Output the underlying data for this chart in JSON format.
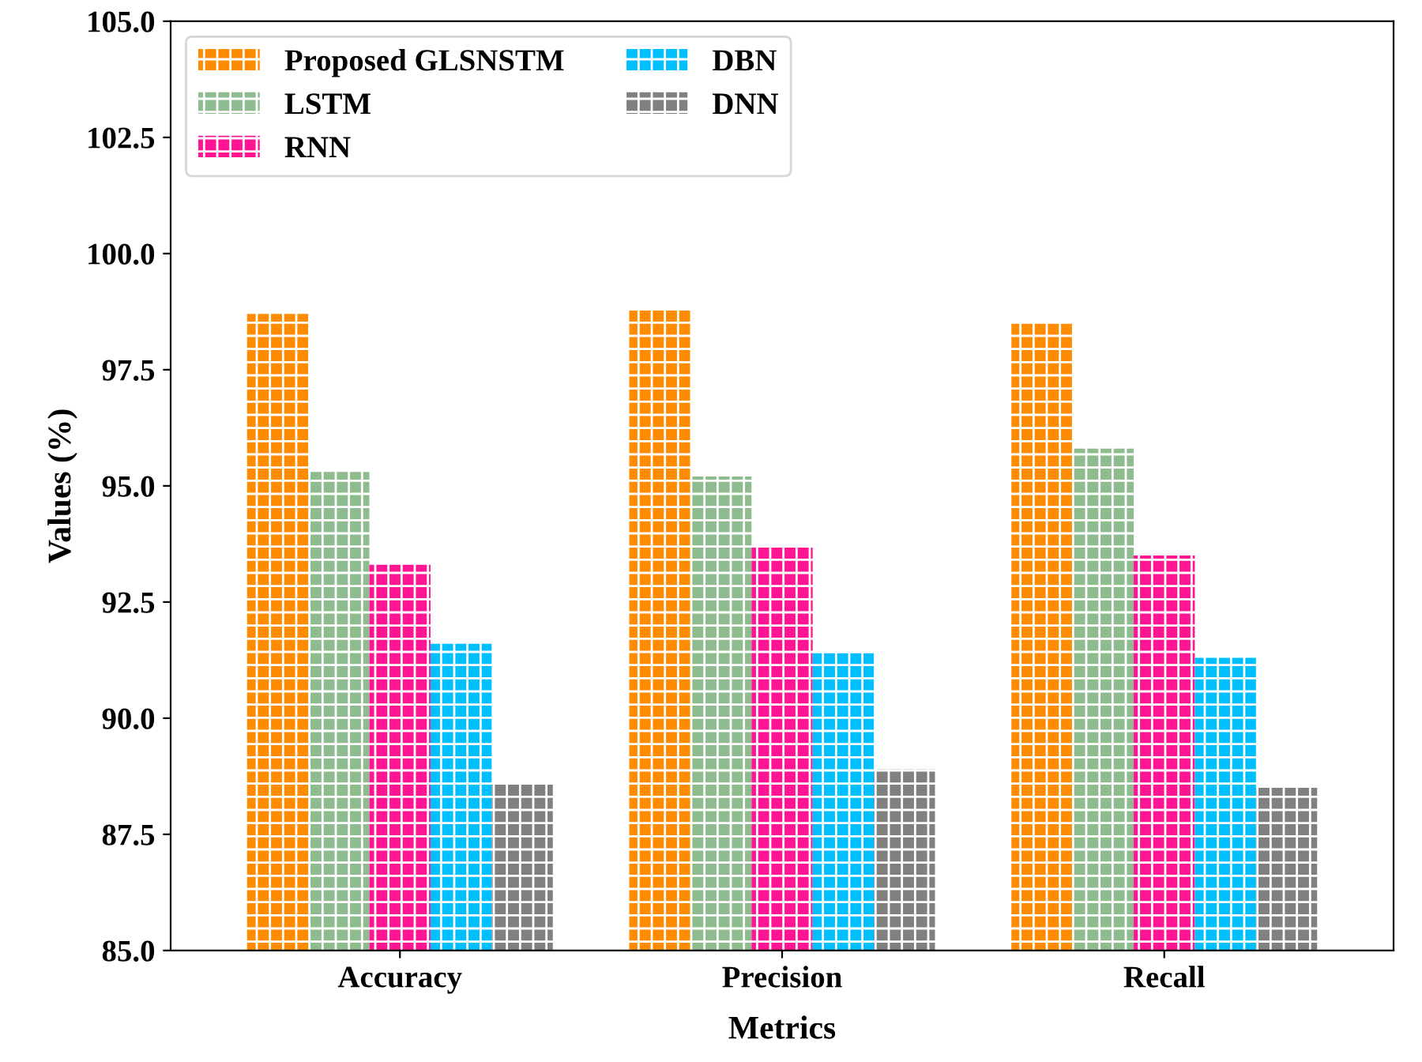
{
  "chart_data": {
    "type": "bar",
    "xlabel": "Metrics",
    "ylabel": "Values (%)",
    "categories": [
      "Accuracy",
      "Precision",
      "Recall"
    ],
    "series": [
      {
        "name": "Proposed GLSNSTM",
        "color": "#ff8c00",
        "values": [
          98.7,
          98.8,
          98.5
        ]
      },
      {
        "name": "LSTM",
        "color": "#8fbc8f",
        "values": [
          95.3,
          95.2,
          95.8
        ]
      },
      {
        "name": "RNN",
        "color": "#ff1493",
        "values": [
          93.3,
          93.7,
          93.5
        ]
      },
      {
        "name": "DBN",
        "color": "#00bfff",
        "values": [
          91.6,
          91.4,
          91.3
        ]
      },
      {
        "name": "DNN",
        "color": "#808080",
        "values": [
          88.6,
          88.9,
          88.5
        ]
      }
    ],
    "ylim": [
      85.0,
      105.0
    ],
    "yticks": [
      {
        "value": 85,
        "label": "85.0"
      },
      {
        "value": 87.5,
        "label": "87.5"
      },
      {
        "value": 90,
        "label": "90.0"
      },
      {
        "value": 92.5,
        "label": "92.5"
      },
      {
        "value": 95,
        "label": "95.0"
      },
      {
        "value": 97.5,
        "label": "97.5"
      },
      {
        "value": 100,
        "label": "100.0"
      },
      {
        "value": 102.5,
        "label": "102.5"
      },
      {
        "value": 105,
        "label": "105.0"
      }
    ],
    "legend": "top left",
    "grid": false
  }
}
